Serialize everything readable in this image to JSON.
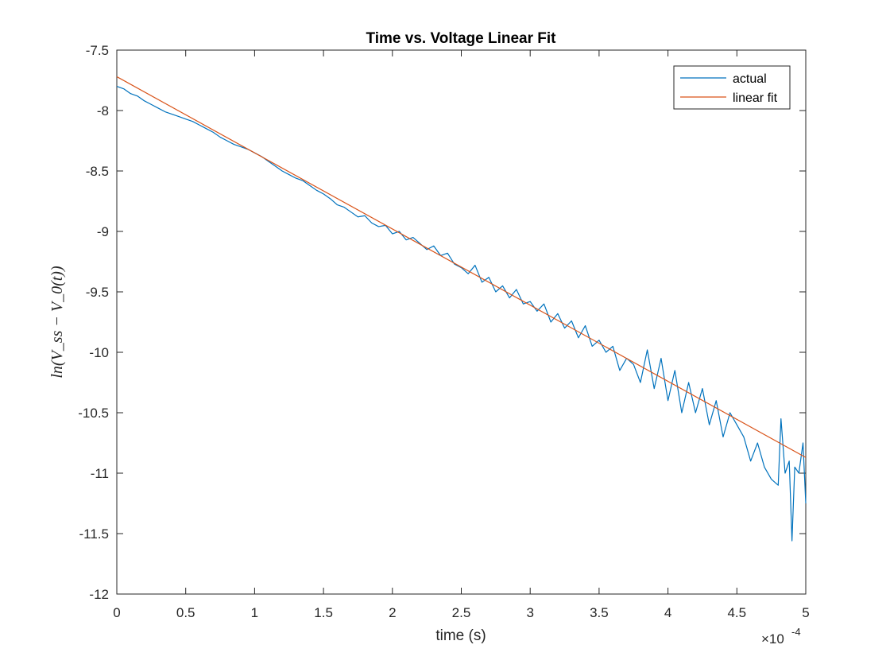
{
  "chart_data": {
    "type": "line",
    "title": "Time vs. Voltage Linear Fit",
    "xlabel": "time (s)",
    "ylabel": "ln(V_ss − V_0(t))",
    "x_multiplier_label": "×10",
    "x_multiplier_exponent": "-4",
    "xlim": [
      0,
      5
    ],
    "ylim": [
      -12,
      -7.5
    ],
    "x_unit_scale": "1e-4",
    "xticks": [
      0,
      0.5,
      1,
      1.5,
      2,
      2.5,
      3,
      3.5,
      4,
      4.5,
      5
    ],
    "xtick_labels": [
      "0",
      "0.5",
      "1",
      "1.5",
      "2",
      "2.5",
      "3",
      "3.5",
      "4",
      "4.5",
      "5"
    ],
    "yticks": [
      -12,
      -11.5,
      -11,
      -10.5,
      -10,
      -9.5,
      -9,
      -8.5,
      -8,
      -7.5
    ],
    "ytick_labels": [
      "-12",
      "-11.5",
      "-11",
      "-10.5",
      "-10",
      "-9.5",
      "-9",
      "-8.5",
      "-8",
      "-7.5"
    ],
    "grid": false,
    "legend_position": "top-right",
    "series": [
      {
        "name": "actual",
        "color": "#0072BD",
        "x": [
          0,
          0.05,
          0.1,
          0.15,
          0.2,
          0.25,
          0.3,
          0.35,
          0.4,
          0.45,
          0.5,
          0.55,
          0.6,
          0.65,
          0.7,
          0.75,
          0.8,
          0.85,
          0.9,
          0.95,
          1.0,
          1.05,
          1.1,
          1.15,
          1.2,
          1.25,
          1.3,
          1.35,
          1.4,
          1.45,
          1.5,
          1.55,
          1.6,
          1.65,
          1.7,
          1.75,
          1.8,
          1.85,
          1.9,
          1.95,
          2.0,
          2.05,
          2.1,
          2.15,
          2.2,
          2.25,
          2.3,
          2.35,
          2.4,
          2.45,
          2.5,
          2.55,
          2.6,
          2.65,
          2.7,
          2.75,
          2.8,
          2.85,
          2.9,
          2.95,
          3.0,
          3.05,
          3.1,
          3.15,
          3.2,
          3.25,
          3.3,
          3.35,
          3.4,
          3.45,
          3.5,
          3.55,
          3.6,
          3.65,
          3.7,
          3.75,
          3.8,
          3.85,
          3.9,
          3.95,
          4.0,
          4.05,
          4.1,
          4.15,
          4.2,
          4.25,
          4.3,
          4.35,
          4.4,
          4.45,
          4.5,
          4.55,
          4.6,
          4.65,
          4.7,
          4.75,
          4.8,
          4.82,
          4.85,
          4.88,
          4.9,
          4.92,
          4.95,
          4.98,
          5.0
        ],
        "y": [
          -7.8,
          -7.82,
          -7.86,
          -7.88,
          -7.92,
          -7.95,
          -7.98,
          -8.01,
          -8.03,
          -8.05,
          -8.07,
          -8.09,
          -8.12,
          -8.15,
          -8.18,
          -8.22,
          -8.25,
          -8.28,
          -8.3,
          -8.32,
          -8.35,
          -8.38,
          -8.42,
          -8.46,
          -8.5,
          -8.53,
          -8.56,
          -8.58,
          -8.62,
          -8.66,
          -8.69,
          -8.73,
          -8.78,
          -8.8,
          -8.84,
          -8.88,
          -8.87,
          -8.93,
          -8.96,
          -8.95,
          -9.02,
          -9.0,
          -9.07,
          -9.05,
          -9.1,
          -9.15,
          -9.12,
          -9.2,
          -9.18,
          -9.27,
          -9.3,
          -9.35,
          -9.28,
          -9.42,
          -9.38,
          -9.5,
          -9.45,
          -9.55,
          -9.48,
          -9.6,
          -9.58,
          -9.66,
          -9.6,
          -9.75,
          -9.68,
          -9.8,
          -9.74,
          -9.88,
          -9.78,
          -9.95,
          -9.9,
          -10.0,
          -9.95,
          -10.15,
          -10.05,
          -10.1,
          -10.25,
          -9.98,
          -10.3,
          -10.05,
          -10.4,
          -10.15,
          -10.5,
          -10.25,
          -10.5,
          -10.3,
          -10.6,
          -10.4,
          -10.7,
          -10.5,
          -10.6,
          -10.7,
          -10.9,
          -10.75,
          -10.95,
          -11.05,
          -11.1,
          -10.55,
          -11.0,
          -10.9,
          -11.56,
          -10.95,
          -11.0,
          -10.75,
          -11.25
        ]
      },
      {
        "name": "linear fit",
        "color": "#D95319",
        "x": [
          0,
          5
        ],
        "y": [
          -7.72,
          -10.87
        ]
      }
    ]
  }
}
